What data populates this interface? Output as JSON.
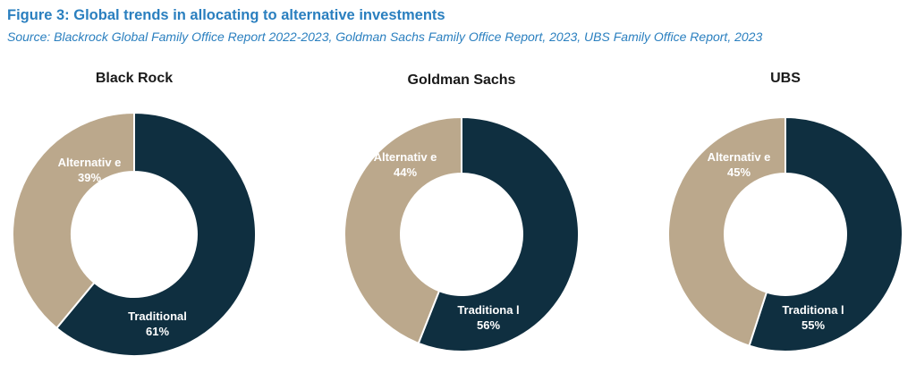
{
  "figure": {
    "title": "Figure 3: Global trends in allocating to alternative investments",
    "source": "Source: Blackrock Global Family Office Report 2022-2023, Goldman Sachs Family Office Report, 2023, UBS Family Office Report, 2023"
  },
  "colors": {
    "traditional": "#0f2f40",
    "alternative": "#bba88c",
    "title_blue": "#2a7fbf"
  },
  "chart_data": [
    {
      "type": "pie",
      "donut": true,
      "title": "Black Rock",
      "slices": [
        {
          "label": "Traditional",
          "value": 61,
          "value_label": "61%"
        },
        {
          "label": "Alternativ e",
          "value": 39,
          "value_label": "39%"
        }
      ]
    },
    {
      "type": "pie",
      "donut": true,
      "title": "Goldman Sachs",
      "slices": [
        {
          "label": "Traditiona l",
          "value": 56,
          "value_label": "56%"
        },
        {
          "label": "Alternativ e",
          "value": 44,
          "value_label": "44%"
        }
      ]
    },
    {
      "type": "pie",
      "donut": true,
      "title": "UBS",
      "slices": [
        {
          "label": "Traditiona l",
          "value": 55,
          "value_label": "55%"
        },
        {
          "label": "Alternativ e",
          "value": 45,
          "value_label": "45%"
        }
      ]
    }
  ]
}
